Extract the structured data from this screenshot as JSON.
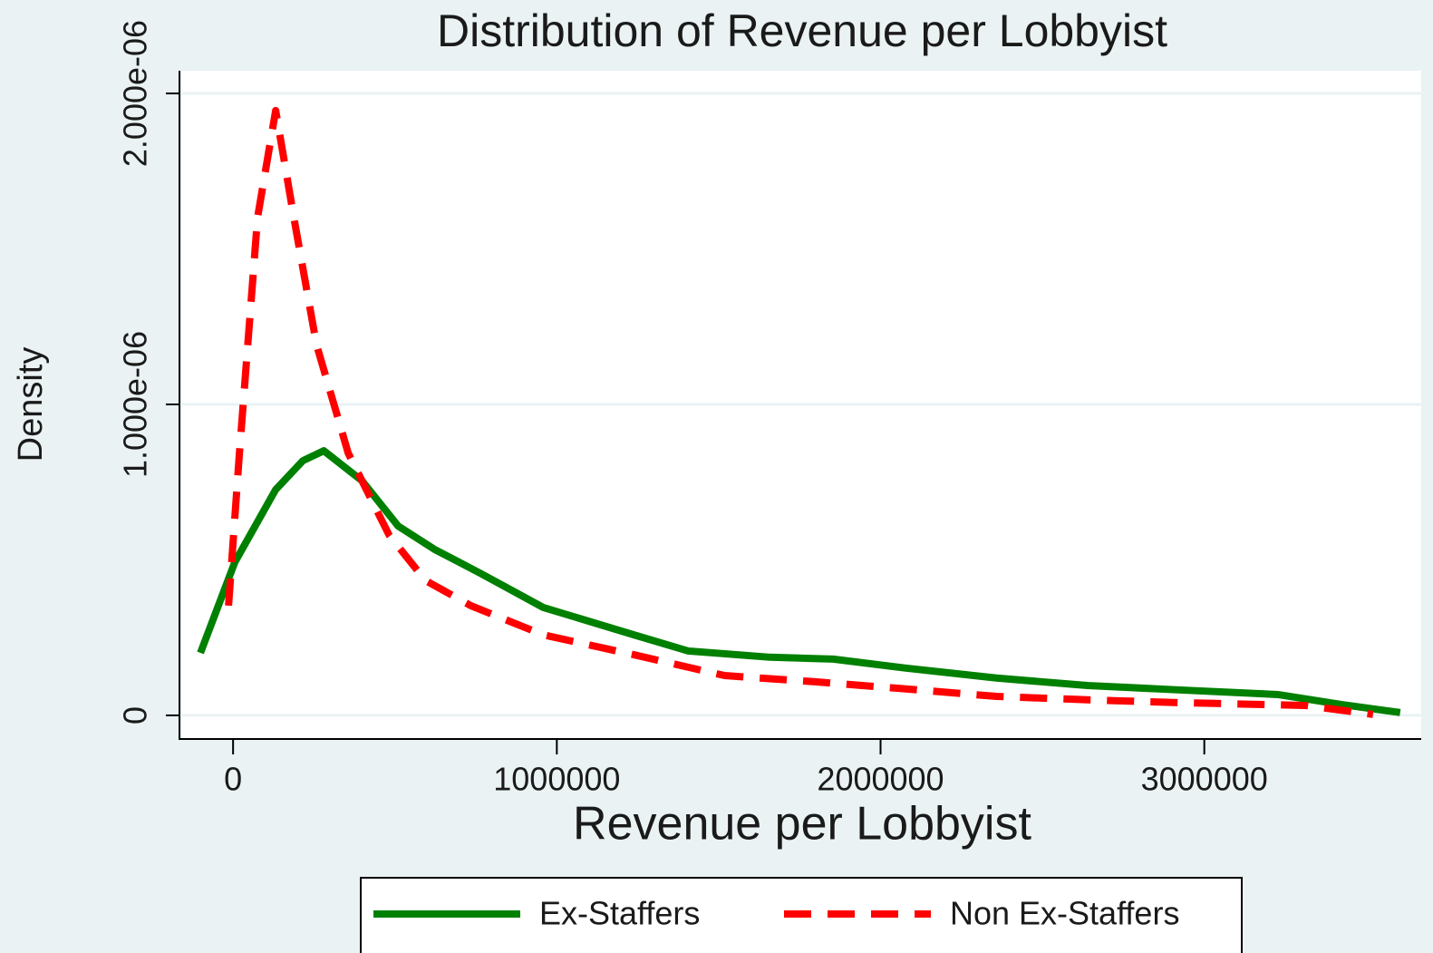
{
  "chart_data": {
    "type": "line",
    "title": "Distribution of Revenue per Lobbyist",
    "x_label": "Revenue per Lobbyist",
    "y_label": "Density",
    "xlim": [
      -160000,
      3670000
    ],
    "ylim": [
      -7.6e-08,
      2.073e-06
    ],
    "xticks": [
      0,
      1000000,
      2000000,
      3000000
    ],
    "yticks": [
      0,
      {
        "value": 1e-06,
        "label": "1.000e-06"
      },
      {
        "value": 2e-06,
        "label": "2.000e-06"
      }
    ],
    "grid": true,
    "legend": "bottom",
    "series": [
      {
        "name": "Ex-Staffers",
        "color": "#008000",
        "style": "solid",
        "x": [
          -100800,
          5600,
          131600,
          215700,
          280100,
          397700,
          509800,
          621800,
          761900,
          958000,
          1238000,
          1406000,
          1658000,
          1854000,
          2078000,
          2358000,
          2639000,
          2919000,
          3227000,
          3423000,
          3605000
        ],
        "values": [
          2.01e-07,
          4.93e-07,
          7.26e-07,
          8.19e-07,
          8.51e-07,
          7.55e-07,
          6.09e-07,
          5.34e-07,
          4.58e-07,
          3.47e-07,
          2.59e-07,
          2.07e-07,
          1.87e-07,
          1.81e-07,
          1.52e-07,
          1.2e-07,
          9.6e-08,
          8.2e-08,
          6.7e-08,
          3.5e-08,
          9e-09
        ]
      },
      {
        "name": "Non Ex-Staffers",
        "color": "#ff0000",
        "style": "dashed",
        "x": [
          -14000,
          19600,
          75600,
          131600,
          187700,
          257700,
          355700,
          481800,
          593800,
          733900,
          958000,
          1238000,
          1518000,
          1798000,
          2078000,
          2358000,
          2639000,
          2919000,
          3311000,
          3521000
        ],
        "values": [
          3.53e-07,
          8.43e-07,
          1.601e-06,
          1.945e-06,
          1.601e-06,
          1.192e-06,
          8.43e-07,
          5.8e-07,
          4.34e-07,
          3.53e-07,
          2.59e-07,
          1.95e-07,
          1.28e-07,
          1.08e-07,
          8.5e-08,
          6.1e-08,
          5e-08,
          4.1e-08,
          3.2e-08,
          3e-09
        ]
      }
    ]
  }
}
